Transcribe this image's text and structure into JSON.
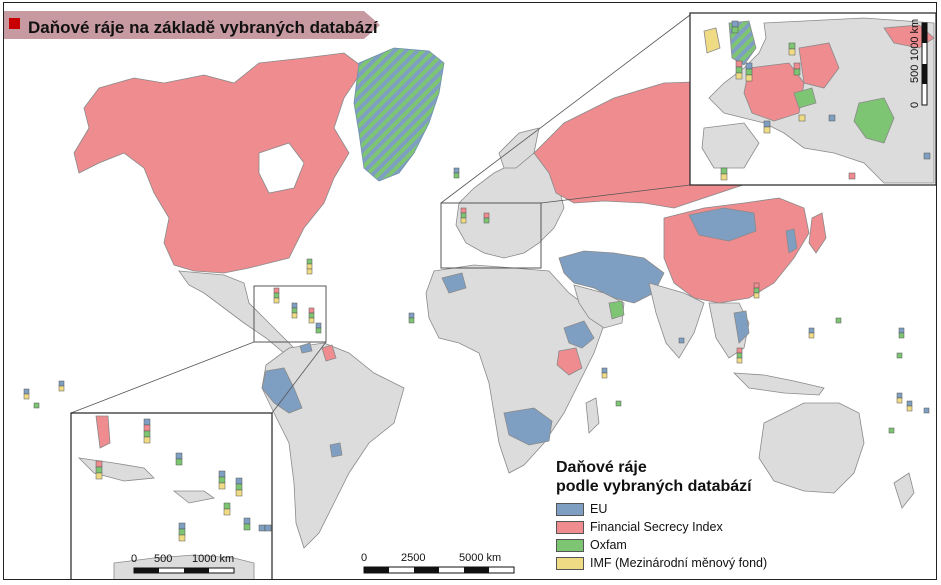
{
  "title": "Daňové ráje na základě vybraných databází",
  "legend": {
    "title_line1": "Daňové ráje",
    "title_line2": "podle vybraných databází",
    "items": [
      {
        "label": "EU",
        "color": "#7f9fc2"
      },
      {
        "label": "Financial Secrecy Index",
        "color": "#ee8c8f"
      },
      {
        "label": "Oxfam",
        "color": "#7dc573"
      },
      {
        "label": "IMF (Mezinárodní měnový fond)",
        "color": "#efdb84"
      }
    ]
  },
  "colors": {
    "land": "#dcdcdc",
    "border": "#8a8a8a",
    "title_marker": "#c80000",
    "title_banner": "#c79aa2"
  },
  "scales": {
    "main": {
      "labels": [
        "0",
        "2500",
        "5000 km"
      ]
    },
    "caribbean_inset": {
      "labels": [
        "0",
        "500",
        "1000 km"
      ]
    },
    "europe_inset": {
      "labels": [
        "0",
        "500",
        "1000 km"
      ]
    }
  }
}
